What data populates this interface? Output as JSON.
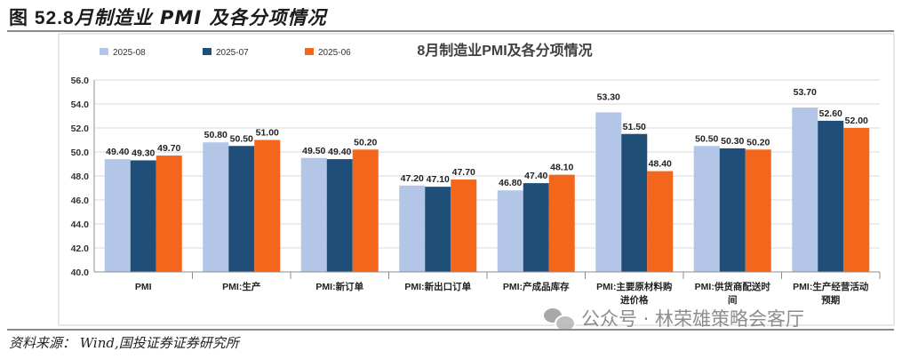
{
  "figure": {
    "number": "图 52.8",
    "heading": "月制造业 PMI 及各分项情况",
    "source": "资料来源： Wind,国投证券证券研究所",
    "watermark": "公众号 · 林荣雄策略会客厅"
  },
  "colors": {
    "2025-08": "#b4c6e7",
    "2025-07": "#1f4e79",
    "2025-06": "#f4661b",
    "grid": "#d9d9d9",
    "axis": "#8c8c8c"
  },
  "chart_data": {
    "type": "bar",
    "title": "8月制造业PMI及各分项情况",
    "xlabel": "",
    "ylabel": "",
    "ylim": [
      40.0,
      56.0
    ],
    "yticks": [
      "40.0",
      "42.0",
      "44.0",
      "46.0",
      "48.0",
      "50.0",
      "52.0",
      "54.0",
      "56.0"
    ],
    "legend_position": "top-left",
    "categories": [
      [
        "PMI"
      ],
      [
        "PMI:生产"
      ],
      [
        "PMI:新订单"
      ],
      [
        "PMI:新出口订单"
      ],
      [
        "PMI:产成品库存"
      ],
      [
        "PMI:主要原材料购",
        "进价格"
      ],
      [
        "PMI:供货商配送时",
        "间"
      ],
      [
        "PMI:生产经营活动",
        "预期"
      ]
    ],
    "series": [
      {
        "name": "2025-08",
        "values": [
          49.4,
          50.8,
          49.5,
          47.2,
          46.8,
          53.3,
          50.5,
          53.7
        ],
        "labels": [
          "49.40",
          "50.80",
          "49.50",
          "47.20",
          "46.80",
          "53.30",
          "50.50",
          "53.70"
        ]
      },
      {
        "name": "2025-07",
        "values": [
          49.3,
          50.5,
          49.4,
          47.1,
          47.4,
          51.5,
          50.3,
          52.6
        ],
        "labels": [
          "49.30",
          "50.50",
          "49.40",
          "47.10",
          "47.40",
          "51.50",
          "50.30",
          "52.60"
        ]
      },
      {
        "name": "2025-06",
        "values": [
          49.7,
          51.0,
          50.2,
          47.7,
          48.1,
          48.4,
          50.2,
          52.0
        ],
        "labels": [
          "49.70",
          "51.00",
          "50.20",
          "47.70",
          "48.10",
          "48.40",
          "50.20",
          "52.00"
        ]
      }
    ]
  }
}
